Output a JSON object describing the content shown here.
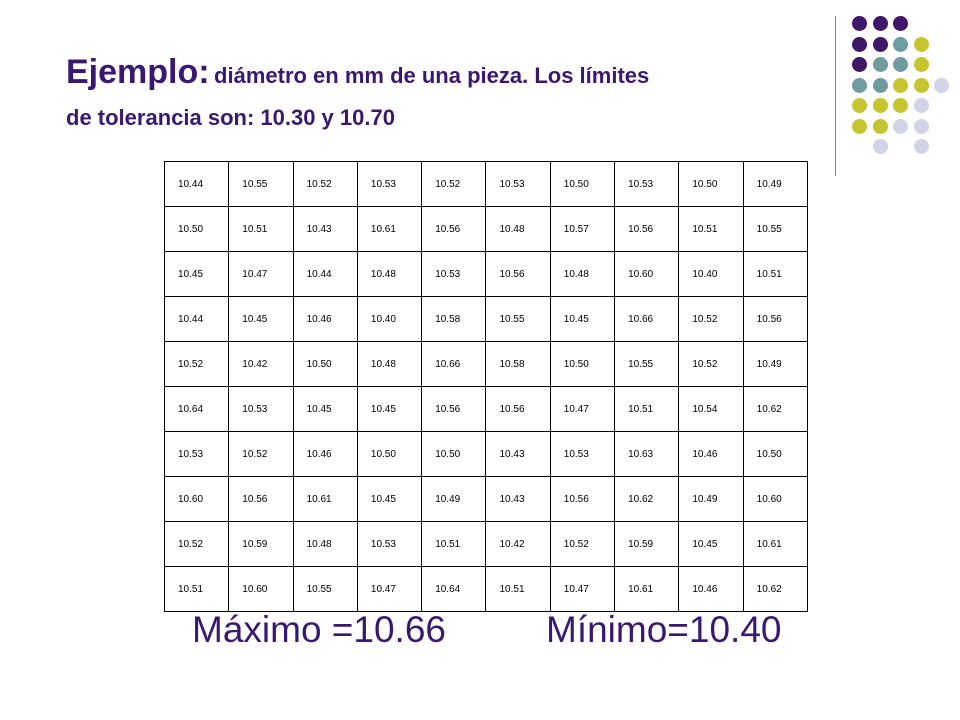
{
  "title": {
    "main": "Ejemplo:",
    "subtitle_line1": "diámetro en mm de una pieza. Los límites",
    "subtitle_line2": "de tolerancia son: 10.30 y 10.70"
  },
  "colors": {
    "title": "#3b1870",
    "dot_purple": "#3f1768",
    "dot_teal": "#6f9c9e",
    "dot_yellow": "#c5c530",
    "dot_lavender": "#d3d3e8"
  },
  "decoration": {
    "dot_grid": [
      [
        "purple",
        "purple",
        "purple",
        null,
        null
      ],
      [
        "purple",
        "purple",
        "teal",
        "yellow",
        null
      ],
      [
        "purple",
        "teal",
        "teal",
        "yellow",
        null
      ],
      [
        "teal",
        "teal",
        "yellow",
        "yellow",
        "lavender"
      ],
      [
        "yellow",
        "yellow",
        "yellow",
        "lavender",
        null
      ],
      [
        "yellow",
        "yellow",
        "lavender",
        "lavender",
        null
      ],
      [
        null,
        "lavender",
        null,
        "lavender",
        null
      ]
    ]
  },
  "table": {
    "rows": [
      [
        "10.44",
        "10.55",
        "10.52",
        "10.53",
        "10.52",
        "10.53",
        "10.50",
        "10.53",
        "10.50",
        "10.49"
      ],
      [
        "10.50",
        "10.51",
        "10.43",
        "10.61",
        "10.56",
        "10.48",
        "10.57",
        "10.56",
        "10.51",
        "10.55"
      ],
      [
        "10.45",
        "10.47",
        "10.44",
        "10.48",
        "10.53",
        "10.56",
        "10.48",
        "10.60",
        "10.40",
        "10.51"
      ],
      [
        "10.44",
        "10.45",
        "10.46",
        "10.40",
        "10.58",
        "10.55",
        "10.45",
        "10.66",
        "10.52",
        "10.56"
      ],
      [
        "10.52",
        "10.42",
        "10.50",
        "10.48",
        "10.66",
        "10.58",
        "10.50",
        "10.55",
        "10.52",
        "10.49"
      ],
      [
        "10.64",
        "10.53",
        "10.45",
        "10.45",
        "10.56",
        "10.56",
        "10.47",
        "10.51",
        "10.54",
        "10.62"
      ],
      [
        "10.53",
        "10.52",
        "10.46",
        "10.50",
        "10.50",
        "10.43",
        "10.53",
        "10.63",
        "10.46",
        "10.50"
      ],
      [
        "10.60",
        "10.56",
        "10.61",
        "10.45",
        "10.49",
        "10.43",
        "10.56",
        "10.62",
        "10.49",
        "10.60"
      ],
      [
        "10.52",
        "10.59",
        "10.48",
        "10.53",
        "10.51",
        "10.42",
        "10.52",
        "10.59",
        "10.45",
        "10.61"
      ],
      [
        "10.51",
        "10.60",
        "10.55",
        "10.47",
        "10.64",
        "10.51",
        "10.47",
        "10.61",
        "10.46",
        "10.62"
      ]
    ]
  },
  "summary": {
    "max": "Máximo =10.66",
    "min": "Mínimo=10.40"
  }
}
